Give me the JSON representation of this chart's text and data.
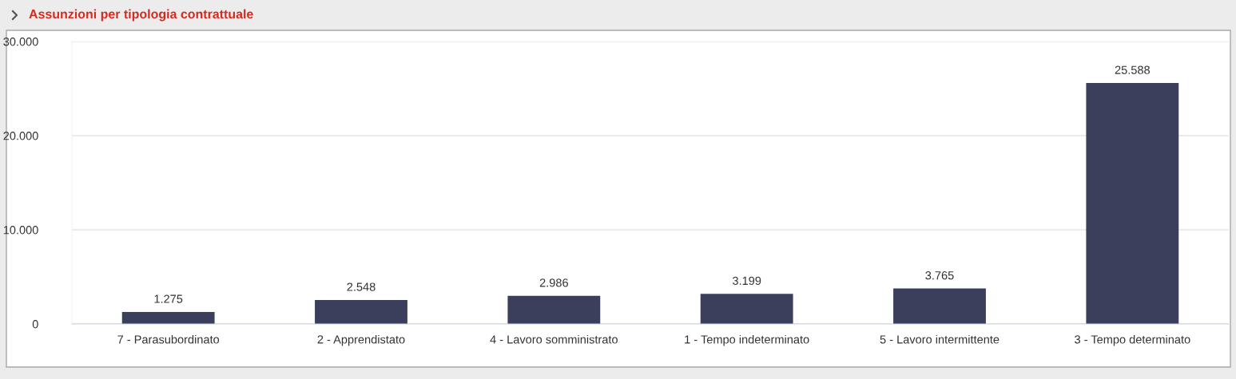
{
  "chart_data": {
    "type": "bar",
    "title": "Assunzioni per tipologia contrattuale",
    "categories": [
      "7 - Parasubordinato",
      "2 - Apprendistato",
      "4 - Lavoro somministrato",
      "1 - Tempo indeterminato",
      "5 - Lavoro intermittente",
      "3 - Tempo determinato"
    ],
    "values": [
      1275,
      2548,
      2986,
      3199,
      3765,
      25588
    ],
    "value_labels": [
      "1.275",
      "2.548",
      "2.986",
      "3.199",
      "3.765",
      "25.588"
    ],
    "color": "#3b3f5c",
    "ylim": [
      0,
      30000
    ],
    "yticks": [
      0,
      {
        "value": 10000,
        "label": "10.000"
      },
      {
        "value": 20000,
        "label": "20.000"
      },
      {
        "value": 30000,
        "label": "30.000"
      }
    ],
    "grid": "y"
  }
}
